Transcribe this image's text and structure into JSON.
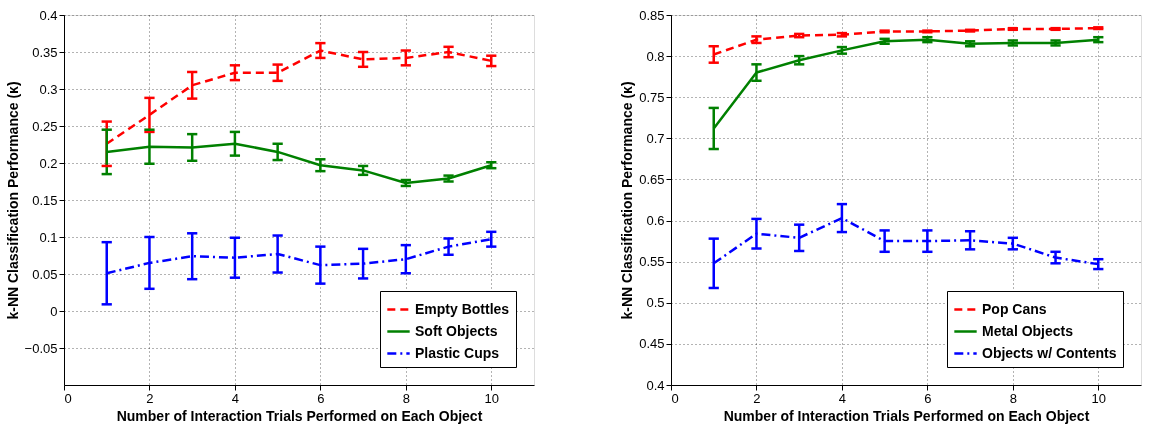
{
  "chart_data": [
    {
      "type": "line",
      "xlabel": "Number of Interaction Trials Performed on Each Object",
      "ylabel": "k-NN Classification Performance (κ)",
      "x": [
        1,
        2,
        3,
        4,
        5,
        6,
        7,
        8,
        9,
        10
      ],
      "xlim": [
        0,
        11
      ],
      "xticks": [
        0,
        2,
        4,
        6,
        8,
        10
      ],
      "ylim": [
        -0.1,
        0.4
      ],
      "yticks": [
        -0.05,
        0,
        0.05,
        0.1,
        0.15,
        0.2,
        0.25,
        0.3,
        0.35,
        0.4
      ],
      "grid": true,
      "legend": "bottom right",
      "marker": "none",
      "series": [
        {
          "name": "Empty Bottles",
          "color": "#ff0000",
          "line_style": "dashed",
          "values": [
            0.226,
            0.265,
            0.305,
            0.322,
            0.322,
            0.352,
            0.34,
            0.342,
            0.35,
            0.338
          ],
          "errors": [
            0.03,
            0.023,
            0.018,
            0.01,
            0.011,
            0.01,
            0.01,
            0.01,
            0.007,
            0.007
          ]
        },
        {
          "name": "Soft Objects",
          "color": "#008000",
          "line_style": "solid",
          "values": [
            0.215,
            0.222,
            0.221,
            0.226,
            0.215,
            0.197,
            0.19,
            0.173,
            0.179,
            0.197
          ],
          "errors": [
            0.03,
            0.023,
            0.018,
            0.016,
            0.011,
            0.008,
            0.006,
            0.004,
            0.004,
            0.004
          ]
        },
        {
          "name": "Plastic Cups",
          "color": "#0000ff",
          "line_style": "dashdot",
          "values": [
            0.051,
            0.065,
            0.074,
            0.072,
            0.077,
            0.062,
            0.064,
            0.07,
            0.087,
            0.097
          ],
          "errors": [
            0.042,
            0.035,
            0.031,
            0.027,
            0.025,
            0.025,
            0.02,
            0.019,
            0.011,
            0.01
          ]
        }
      ]
    },
    {
      "type": "line",
      "xlabel": "Number of Interaction Trials Performed on Each Object",
      "ylabel": "k-NN Classification Performance (κ)",
      "x": [
        1,
        2,
        3,
        4,
        5,
        6,
        7,
        8,
        9,
        10
      ],
      "xlim": [
        0,
        11
      ],
      "xticks": [
        0,
        2,
        4,
        6,
        8,
        10
      ],
      "ylim": [
        0.4,
        0.85
      ],
      "yticks": [
        0.4,
        0.45,
        0.5,
        0.55,
        0.6,
        0.65,
        0.7,
        0.75,
        0.8,
        0.85
      ],
      "grid": true,
      "legend": "bottom right",
      "marker": "none",
      "series": [
        {
          "name": "Pop Cans",
          "color": "#ff0000",
          "line_style": "dashed",
          "values": [
            0.802,
            0.82,
            0.825,
            0.826,
            0.83,
            0.83,
            0.831,
            0.833,
            0.833,
            0.834
          ],
          "errors": [
            0.01,
            0.004,
            0.002,
            0.002,
            0.001,
            0.001,
            0.001,
            0.001,
            0.001,
            0.001
          ]
        },
        {
          "name": "Metal Objects",
          "color": "#008000",
          "line_style": "solid",
          "values": [
            0.712,
            0.78,
            0.795,
            0.807,
            0.818,
            0.82,
            0.815,
            0.816,
            0.816,
            0.82
          ],
          "errors": [
            0.025,
            0.01,
            0.005,
            0.004,
            0.003,
            0.003,
            0.003,
            0.003,
            0.003,
            0.003
          ]
        },
        {
          "name": "Objects w/ Contents",
          "color": "#0000ff",
          "line_style": "dashdot",
          "values": [
            0.548,
            0.584,
            0.579,
            0.603,
            0.575,
            0.575,
            0.576,
            0.572,
            0.555,
            0.547
          ],
          "errors": [
            0.03,
            0.018,
            0.016,
            0.017,
            0.013,
            0.013,
            0.011,
            0.007,
            0.007,
            0.006
          ]
        }
      ]
    }
  ]
}
